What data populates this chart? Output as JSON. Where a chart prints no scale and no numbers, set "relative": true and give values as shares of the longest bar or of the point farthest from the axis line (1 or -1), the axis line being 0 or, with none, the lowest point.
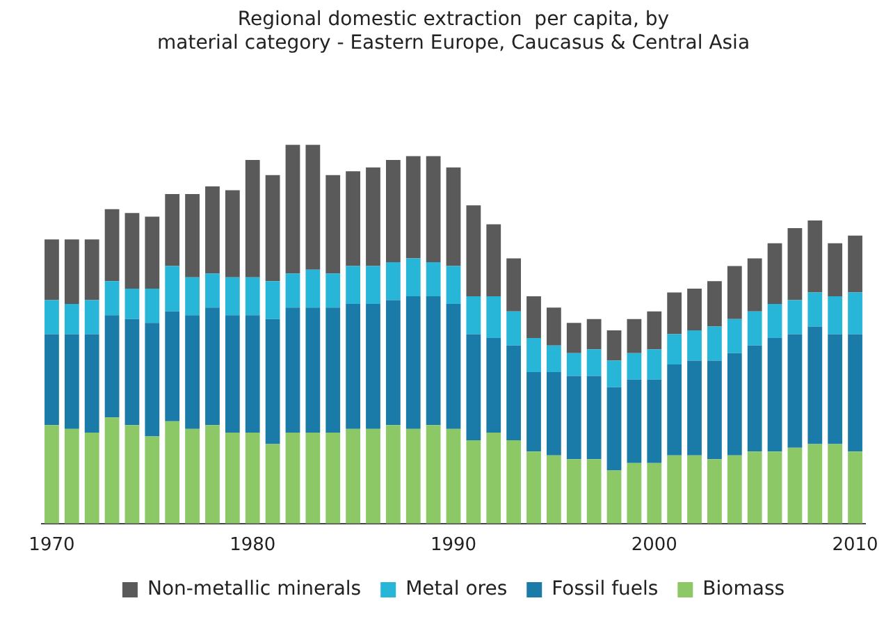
{
  "chart_data": {
    "type": "bar",
    "stacked": true,
    "relative": true,
    "legend": "bottom",
    "title": [
      "Regional domestic extraction  per capita, by",
      "material category - Eastern Europe, Caucasus & Central Asia"
    ],
    "categories": [
      "1970",
      null,
      null,
      null,
      null,
      null,
      null,
      null,
      null,
      null,
      "1980",
      null,
      null,
      null,
      null,
      null,
      null,
      null,
      null,
      null,
      "1990",
      null,
      null,
      null,
      null,
      null,
      null,
      null,
      null,
      null,
      "2000",
      null,
      null,
      null,
      null,
      null,
      null,
      null,
      null,
      null,
      "2010"
    ],
    "series": [
      {
        "name": "Biomass",
        "color": "#8cc866",
        "values": [
          0.26,
          0.25,
          0.24,
          0.28,
          0.26,
          0.23,
          0.27,
          0.25,
          0.26,
          0.24,
          0.24,
          0.21,
          0.24,
          0.24,
          0.24,
          0.25,
          0.25,
          0.26,
          0.25,
          0.26,
          0.25,
          0.22,
          0.24,
          0.22,
          0.19,
          0.18,
          0.17,
          0.17,
          0.14,
          0.16,
          0.16,
          0.18,
          0.18,
          0.17,
          0.18,
          0.19,
          0.19,
          0.2,
          0.21,
          0.21,
          0.19
        ]
      },
      {
        "name": "Fossil fuels",
        "color": "#1a7aa8",
        "values": [
          0.24,
          0.25,
          0.26,
          0.27,
          0.28,
          0.3,
          0.29,
          0.3,
          0.31,
          0.31,
          0.31,
          0.33,
          0.33,
          0.33,
          0.33,
          0.33,
          0.33,
          0.33,
          0.35,
          0.34,
          0.33,
          0.28,
          0.25,
          0.25,
          0.21,
          0.22,
          0.22,
          0.22,
          0.22,
          0.22,
          0.22,
          0.24,
          0.25,
          0.26,
          0.27,
          0.28,
          0.3,
          0.3,
          0.31,
          0.29,
          0.31
        ]
      },
      {
        "name": "Metal ores",
        "color": "#27b5d8",
        "values": [
          0.09,
          0.08,
          0.09,
          0.09,
          0.08,
          0.09,
          0.12,
          0.1,
          0.09,
          0.1,
          0.1,
          0.1,
          0.09,
          0.1,
          0.09,
          0.1,
          0.1,
          0.1,
          0.1,
          0.09,
          0.1,
          0.1,
          0.11,
          0.09,
          0.09,
          0.07,
          0.06,
          0.07,
          0.07,
          0.07,
          0.08,
          0.08,
          0.08,
          0.09,
          0.09,
          0.09,
          0.09,
          0.09,
          0.09,
          0.1,
          0.11
        ]
      },
      {
        "name": "Non-metallic minerals",
        "color": "#5a5a5a",
        "values": [
          0.16,
          0.17,
          0.16,
          0.19,
          0.2,
          0.19,
          0.19,
          0.22,
          0.23,
          0.23,
          0.31,
          0.28,
          0.34,
          0.33,
          0.26,
          0.25,
          0.26,
          0.27,
          0.27,
          0.28,
          0.26,
          0.24,
          0.19,
          0.14,
          0.11,
          0.1,
          0.08,
          0.08,
          0.08,
          0.09,
          0.1,
          0.11,
          0.11,
          0.12,
          0.14,
          0.14,
          0.16,
          0.19,
          0.19,
          0.14,
          0.15
        ]
      }
    ]
  }
}
